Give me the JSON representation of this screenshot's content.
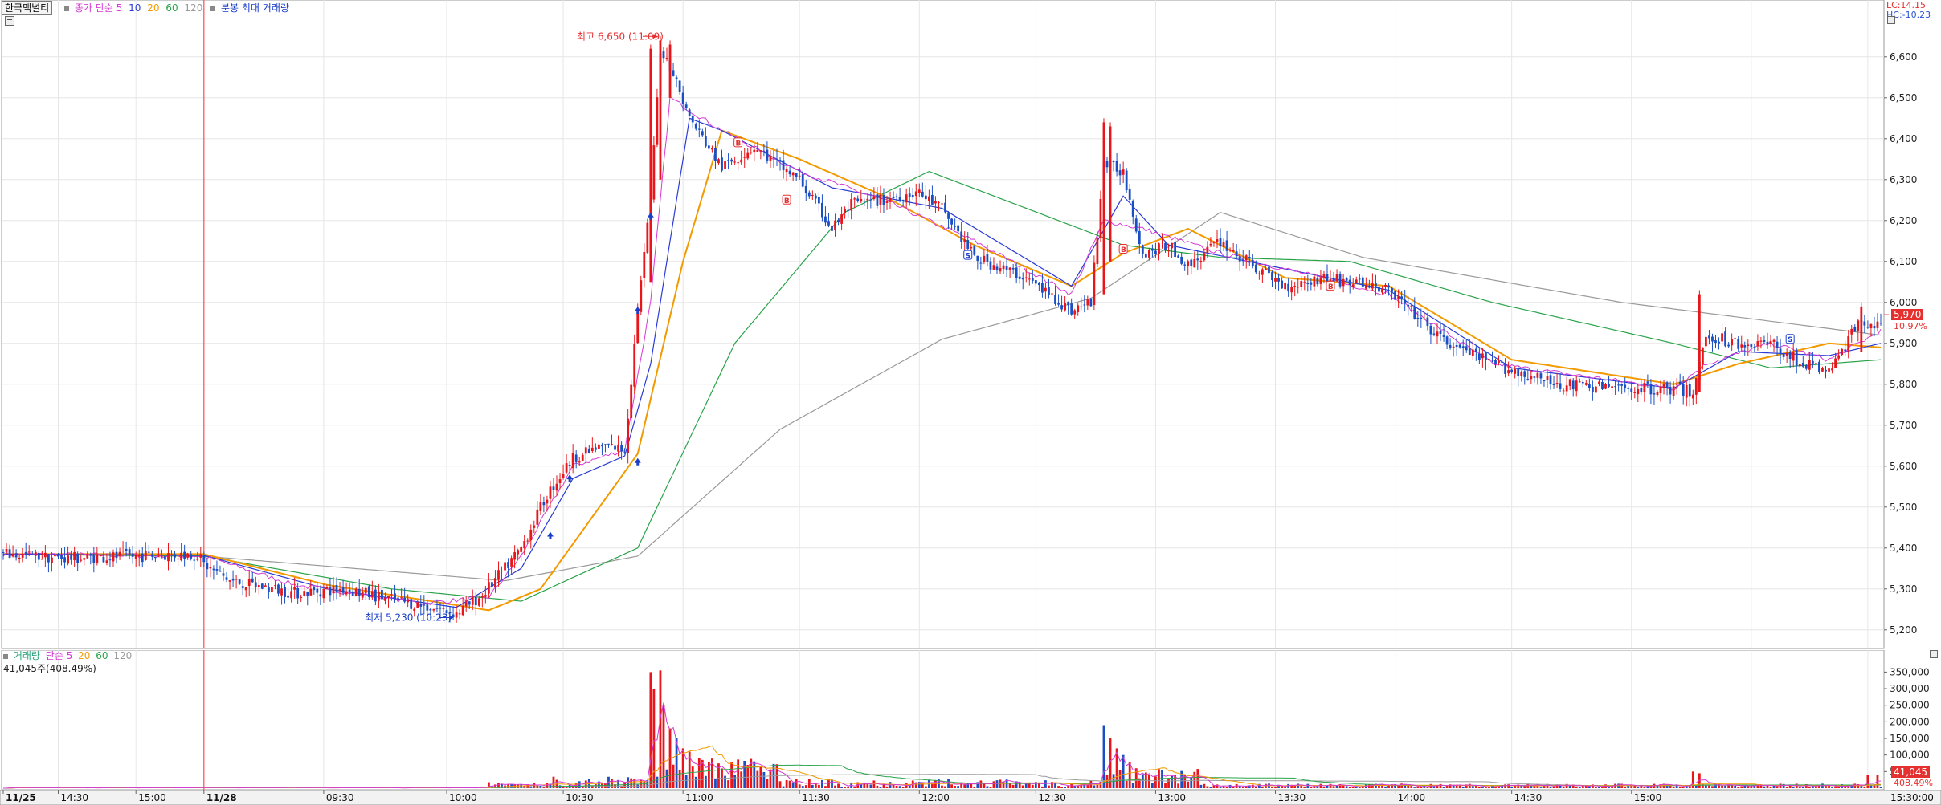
{
  "header": {
    "stock_name": "한국맥널티",
    "price_legend": "종가 단순 5",
    "ma_periods": [
      "10",
      "20",
      "60",
      "120"
    ],
    "ma_colors": [
      "#2a3bd6",
      "#f29a00",
      "#2aa34a",
      "#9a9a9a"
    ],
    "ma5_color": "#d43ad4",
    "chart_type": "분봉 최대 거래량"
  },
  "corner": {
    "lc": "LC:14.15",
    "hc": "HC:-10.23"
  },
  "annotations": {
    "high_label": "최고 6,650 (11:09)",
    "low_label": "최저 5,230 (10:23)"
  },
  "price_axis": {
    "ticks": [
      "6,600",
      "6,500",
      "6,400",
      "6,300",
      "6,200",
      "6,100",
      "6,000",
      "5,900",
      "5,800",
      "5,700",
      "5,600",
      "5,500",
      "5,400",
      "5,300",
      "5,200"
    ],
    "current_price": "5,970",
    "current_change": "10.97%"
  },
  "volume_panel": {
    "legend_name": "거래량",
    "legend_ma": "단순 5",
    "legend_periods": [
      "20",
      "60",
      "120"
    ],
    "summary": "41,045주(408.49%)",
    "ticks": [
      "350,000",
      "300,000",
      "250,000",
      "200,000",
      "150,000",
      "100,000",
      "50,000"
    ],
    "current_volume": "41,045",
    "current_pct": "408.49%"
  },
  "time_axis": {
    "labels": [
      "11/25",
      "14:30",
      "15:00",
      "11/28",
      "09:30",
      "10:00",
      "10:30",
      "11:00",
      "11:30",
      "12:00",
      "12:30",
      "13:00",
      "13:30",
      "14:00",
      "14:30",
      "15:00"
    ],
    "end_label": "15:30:00"
  },
  "colors": {
    "up": "#e8161b",
    "down": "#1a4fc4",
    "grid": "#e6e6e6",
    "divider": "#ff4d4d"
  },
  "chart_data": {
    "type": "candlestick",
    "title": "한국맥널티",
    "ylim": [
      5180,
      6680
    ],
    "volume_ylim": [
      0,
      380000
    ],
    "high": {
      "value": 6650,
      "time": "11:09"
    },
    "low": {
      "value": 5230,
      "time": "10:23"
    },
    "current": {
      "price": 5970,
      "change_pct": 10.97,
      "volume": 41045
    },
    "close_keys": [
      [
        0,
        5385
      ],
      [
        20,
        5375
      ],
      [
        40,
        5380
      ],
      [
        60,
        5385
      ],
      [
        62,
        5360
      ],
      [
        70,
        5320
      ],
      [
        90,
        5290
      ],
      [
        105,
        5300
      ],
      [
        120,
        5275
      ],
      [
        135,
        5250
      ],
      [
        140,
        5240
      ],
      [
        148,
        5285
      ],
      [
        156,
        5360
      ],
      [
        160,
        5400
      ],
      [
        168,
        5530
      ],
      [
        176,
        5620
      ],
      [
        186,
        5650
      ],
      [
        192,
        5640
      ],
      [
        196,
        5980
      ],
      [
        200,
        6250
      ],
      [
        203,
        6620
      ],
      [
        206,
        6580
      ],
      [
        212,
        6450
      ],
      [
        222,
        6330
      ],
      [
        232,
        6380
      ],
      [
        246,
        6300
      ],
      [
        256,
        6180
      ],
      [
        262,
        6240
      ],
      [
        272,
        6250
      ],
      [
        282,
        6270
      ],
      [
        290,
        6230
      ],
      [
        300,
        6110
      ],
      [
        316,
        6060
      ],
      [
        330,
        5980
      ],
      [
        336,
        6000
      ],
      [
        340,
        6340
      ],
      [
        346,
        6320
      ],
      [
        352,
        6120
      ],
      [
        360,
        6140
      ],
      [
        366,
        6090
      ],
      [
        376,
        6150
      ],
      [
        382,
        6110
      ],
      [
        396,
        6040
      ],
      [
        408,
        6060
      ],
      [
        416,
        6050
      ],
      [
        428,
        6030
      ],
      [
        444,
        5910
      ],
      [
        460,
        5850
      ],
      [
        480,
        5800
      ],
      [
        500,
        5790
      ],
      [
        516,
        5790
      ],
      [
        522,
        5780
      ],
      [
        526,
        5920
      ],
      [
        536,
        5900
      ],
      [
        546,
        5900
      ],
      [
        556,
        5850
      ],
      [
        564,
        5830
      ],
      [
        574,
        5960
      ],
      [
        580,
        5940
      ]
    ],
    "ma": [
      {
        "name": "5",
        "keys": [
          [
            0,
            5385
          ],
          [
            62,
            5380
          ],
          [
            90,
            5310
          ],
          [
            130,
            5265
          ],
          [
            150,
            5280
          ],
          [
            160,
            5380
          ],
          [
            176,
            5600
          ],
          [
            192,
            5640
          ],
          [
            200,
            6000
          ],
          [
            206,
            6500
          ],
          [
            222,
            6420
          ],
          [
            246,
            6320
          ],
          [
            272,
            6250
          ],
          [
            300,
            6150
          ],
          [
            330,
            6020
          ],
          [
            340,
            6200
          ],
          [
            352,
            6180
          ],
          [
            376,
            6120
          ],
          [
            428,
            6020
          ],
          [
            460,
            5850
          ],
          [
            516,
            5790
          ],
          [
            526,
            5850
          ],
          [
            546,
            5900
          ],
          [
            564,
            5860
          ],
          [
            580,
            5930
          ]
        ]
      },
      {
        "name": "10",
        "keys": [
          [
            0,
            5385
          ],
          [
            62,
            5382
          ],
          [
            100,
            5300
          ],
          [
            140,
            5255
          ],
          [
            160,
            5350
          ],
          [
            176,
            5570
          ],
          [
            192,
            5625
          ],
          [
            200,
            5850
          ],
          [
            212,
            6450
          ],
          [
            222,
            6420
          ],
          [
            256,
            6280
          ],
          [
            290,
            6230
          ],
          [
            330,
            6040
          ],
          [
            346,
            6260
          ],
          [
            360,
            6140
          ],
          [
            428,
            6030
          ],
          [
            466,
            5840
          ],
          [
            516,
            5790
          ],
          [
            536,
            5880
          ],
          [
            564,
            5870
          ],
          [
            580,
            5900
          ]
        ]
      },
      {
        "name": "20",
        "keys": [
          [
            0,
            5385
          ],
          [
            62,
            5385
          ],
          [
            100,
            5310
          ],
          [
            150,
            5248
          ],
          [
            166,
            5300
          ],
          [
            186,
            5520
          ],
          [
            196,
            5630
          ],
          [
            210,
            6100
          ],
          [
            222,
            6420
          ],
          [
            246,
            6350
          ],
          [
            272,
            6260
          ],
          [
            300,
            6140
          ],
          [
            330,
            6040
          ],
          [
            346,
            6120
          ],
          [
            366,
            6180
          ],
          [
            396,
            6060
          ],
          [
            428,
            6040
          ],
          [
            466,
            5860
          ],
          [
            516,
            5800
          ],
          [
            536,
            5850
          ],
          [
            564,
            5900
          ],
          [
            580,
            5890
          ]
        ]
      },
      {
        "name": "60",
        "keys": [
          [
            0,
            5385
          ],
          [
            62,
            5380
          ],
          [
            120,
            5300
          ],
          [
            160,
            5270
          ],
          [
            196,
            5400
          ],
          [
            226,
            5900
          ],
          [
            260,
            6220
          ],
          [
            286,
            6320
          ],
          [
            316,
            6230
          ],
          [
            346,
            6140
          ],
          [
            376,
            6110
          ],
          [
            416,
            6100
          ],
          [
            460,
            6000
          ],
          [
            516,
            5900
          ],
          [
            546,
            5840
          ],
          [
            580,
            5860
          ]
        ]
      },
      {
        "name": "120",
        "keys": [
          [
            0,
            5385
          ],
          [
            62,
            5380
          ],
          [
            155,
            5320
          ],
          [
            196,
            5380
          ],
          [
            240,
            5690
          ],
          [
            290,
            5910
          ],
          [
            336,
            6010
          ],
          [
            376,
            6220
          ],
          [
            420,
            6110
          ],
          [
            500,
            6000
          ],
          [
            580,
            5920
          ]
        ]
      }
    ],
    "signals": {
      "buy": [
        [
          169,
          5430
        ],
        [
          175,
          5570
        ],
        [
          196,
          5980
        ],
        [
          200,
          6210
        ],
        [
          196,
          5610
        ]
      ],
      "B": [
        [
          227,
          6390
        ],
        [
          242,
          6250
        ],
        [
          346,
          6130
        ],
        [
          410,
          6040
        ]
      ],
      "S": [
        [
          298,
          6115
        ],
        [
          552,
          5910
        ]
      ]
    }
  }
}
